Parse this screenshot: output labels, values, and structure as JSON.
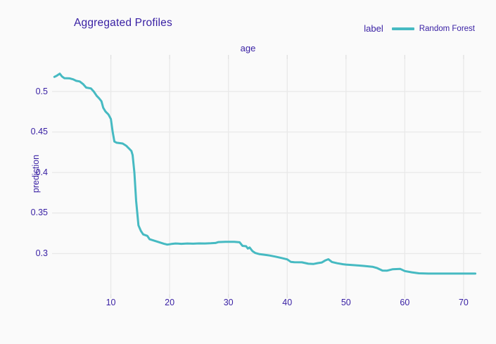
{
  "colors": {
    "text_accent": "#371ea3",
    "series_line": "#46bac2",
    "grid": "#e9e9e9",
    "tick": "#e0e0e0",
    "background": "#fafafa"
  },
  "header": {
    "title": "Aggregated Profiles"
  },
  "legend": {
    "title": "label",
    "items": [
      {
        "label": "Random Forest",
        "color": "#46bac2"
      }
    ]
  },
  "chart_data": {
    "type": "line",
    "title": "Aggregated Profiles",
    "facet_label": "age",
    "xlabel": "age",
    "ylabel": "prediction",
    "legend_title": "label",
    "legend_position": "top-right",
    "grid": true,
    "xlim": [
      0,
      73
    ],
    "ylim": [
      0.25,
      0.54
    ],
    "x_ticks": [
      10,
      20,
      30,
      40,
      50,
      60,
      70
    ],
    "x_tick_labels": [
      "10",
      "20",
      "30",
      "40",
      "50",
      "60",
      "70"
    ],
    "y_ticks": [
      0.3,
      0.35,
      0.4,
      0.45,
      0.5
    ],
    "y_tick_labels": [
      "0.3",
      "0.35",
      "0.4",
      "0.45",
      "0.5"
    ],
    "series": [
      {
        "name": "Random Forest",
        "color": "#46bac2",
        "points": [
          [
            0.4,
            0.518
          ],
          [
            0.8,
            0.5195
          ],
          [
            1.3,
            0.522
          ],
          [
            1.7,
            0.5185
          ],
          [
            2.1,
            0.5165
          ],
          [
            3.0,
            0.5162
          ],
          [
            3.6,
            0.515
          ],
          [
            4.1,
            0.5132
          ],
          [
            4.7,
            0.5124
          ],
          [
            5.3,
            0.509
          ],
          [
            5.8,
            0.5048
          ],
          [
            6.6,
            0.5038
          ],
          [
            7.1,
            0.5
          ],
          [
            7.6,
            0.4946
          ],
          [
            8.0,
            0.4916
          ],
          [
            8.4,
            0.488
          ],
          [
            8.7,
            0.48
          ],
          [
            9.1,
            0.4752
          ],
          [
            9.6,
            0.4716
          ],
          [
            10.0,
            0.466
          ],
          [
            10.3,
            0.4505
          ],
          [
            10.6,
            0.4382
          ],
          [
            11.0,
            0.4368
          ],
          [
            12.0,
            0.4358
          ],
          [
            12.6,
            0.4331
          ],
          [
            13.2,
            0.4288
          ],
          [
            13.5,
            0.4265
          ],
          [
            13.7,
            0.4216
          ],
          [
            14.0,
            0.4
          ],
          [
            14.3,
            0.365
          ],
          [
            14.7,
            0.3348
          ],
          [
            15.1,
            0.328
          ],
          [
            15.5,
            0.3236
          ],
          [
            16.2,
            0.3218
          ],
          [
            16.6,
            0.3176
          ],
          [
            17.4,
            0.3158
          ],
          [
            18.2,
            0.314
          ],
          [
            19.0,
            0.3122
          ],
          [
            19.6,
            0.311
          ],
          [
            20.3,
            0.3118
          ],
          [
            21.0,
            0.3124
          ],
          [
            22.0,
            0.312
          ],
          [
            23.0,
            0.3124
          ],
          [
            24.0,
            0.3122
          ],
          [
            25.0,
            0.3125
          ],
          [
            26.0,
            0.3124
          ],
          [
            27.0,
            0.3127
          ],
          [
            27.8,
            0.313
          ],
          [
            28.3,
            0.3142
          ],
          [
            29.5,
            0.3144
          ],
          [
            31.0,
            0.3144
          ],
          [
            31.9,
            0.3139
          ],
          [
            32.4,
            0.3095
          ],
          [
            33.0,
            0.309
          ],
          [
            33.3,
            0.3062
          ],
          [
            33.6,
            0.3075
          ],
          [
            34.1,
            0.303
          ],
          [
            34.6,
            0.3006
          ],
          [
            35.3,
            0.2992
          ],
          [
            36.0,
            0.2986
          ],
          [
            37.0,
            0.2976
          ],
          [
            38.0,
            0.2962
          ],
          [
            39.0,
            0.2945
          ],
          [
            40.0,
            0.2928
          ],
          [
            40.6,
            0.2898
          ],
          [
            41.2,
            0.2893
          ],
          [
            42.5,
            0.2892
          ],
          [
            43.6,
            0.2874
          ],
          [
            44.5,
            0.2872
          ],
          [
            45.2,
            0.2882
          ],
          [
            45.9,
            0.289
          ],
          [
            46.5,
            0.2916
          ],
          [
            47.0,
            0.293
          ],
          [
            47.6,
            0.2896
          ],
          [
            48.5,
            0.288
          ],
          [
            49.5,
            0.2868
          ],
          [
            50.0,
            0.2864
          ],
          [
            51.5,
            0.2856
          ],
          [
            53.0,
            0.2847
          ],
          [
            54.5,
            0.2837
          ],
          [
            55.3,
            0.282
          ],
          [
            56.2,
            0.279
          ],
          [
            57.0,
            0.2789
          ],
          [
            57.9,
            0.2806
          ],
          [
            59.2,
            0.2811
          ],
          [
            60.0,
            0.2784
          ],
          [
            61.2,
            0.2768
          ],
          [
            62.4,
            0.2756
          ],
          [
            64.0,
            0.2753
          ],
          [
            66.5,
            0.2753
          ],
          [
            69.0,
            0.2753
          ],
          [
            72.0,
            0.2753
          ]
        ]
      }
    ]
  }
}
